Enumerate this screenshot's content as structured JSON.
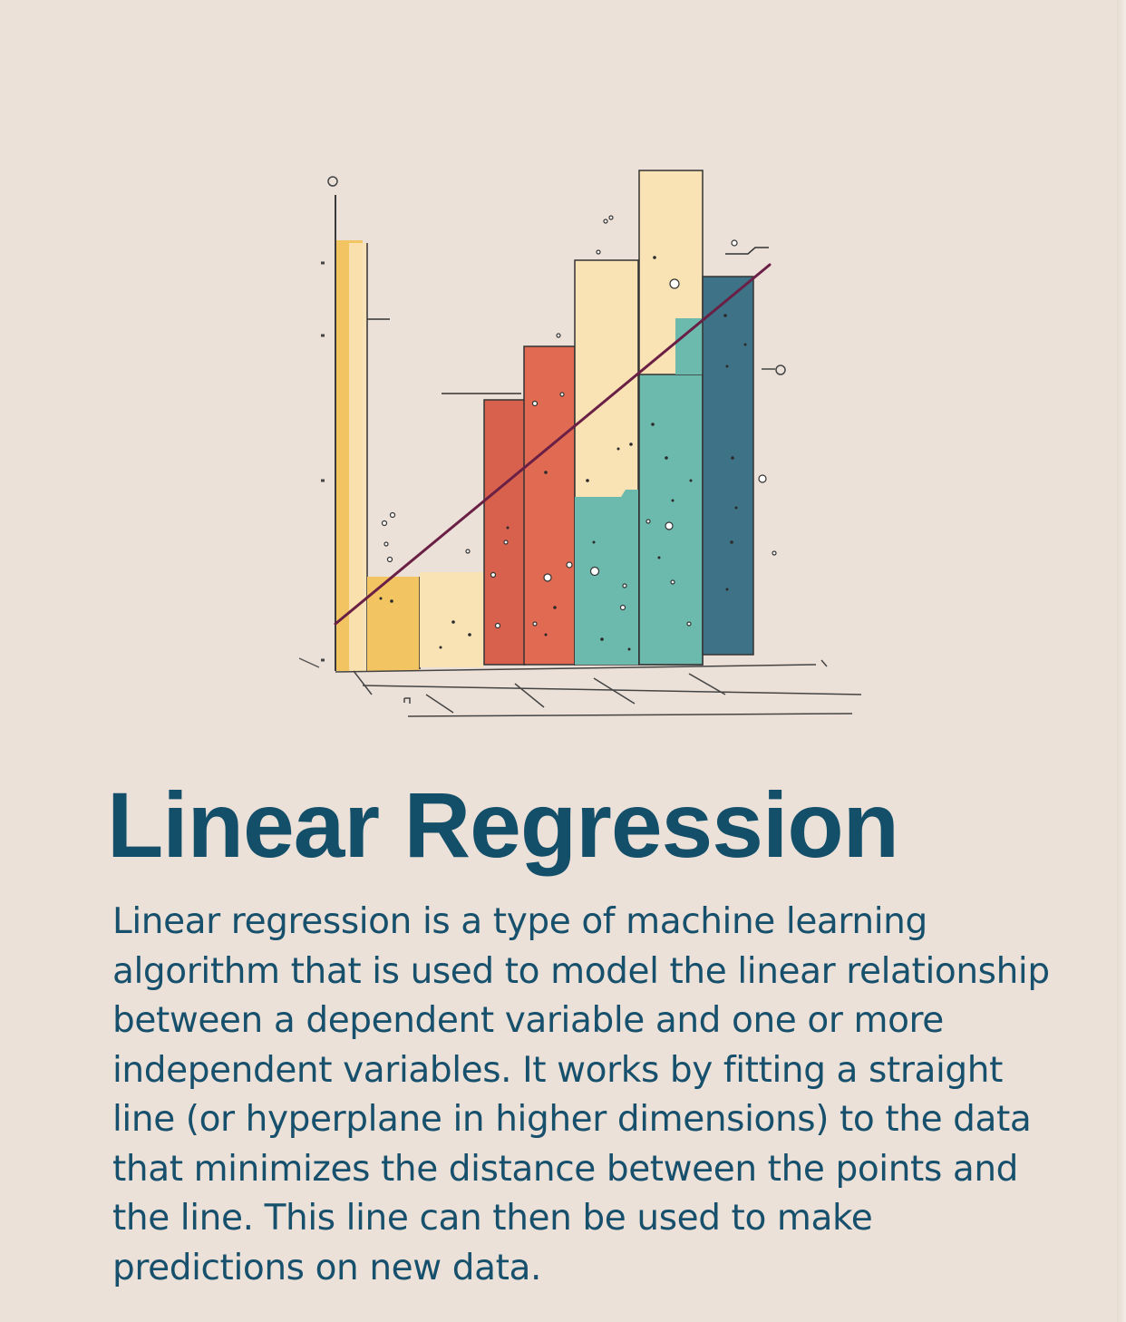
{
  "title": "Linear Regression",
  "description": "Linear regression is a type of machine learning algorithm that is used to model the linear relationship between a dependent variable and one or more independent variables. It works by fitting a straight line (or hyperplane in higher dimensions) to the data that minimizes the distance between the points and the line. This line can then be used to make predictions on new data.",
  "colors": {
    "background": "#ece1d8",
    "title": "#144f6a",
    "yellow": "#f2c462",
    "cream": "#f9e3b5",
    "red": "#d8614e",
    "teal": "#6cb9ad",
    "blue": "#3e7286",
    "regression_line": "#6a1f45"
  }
}
